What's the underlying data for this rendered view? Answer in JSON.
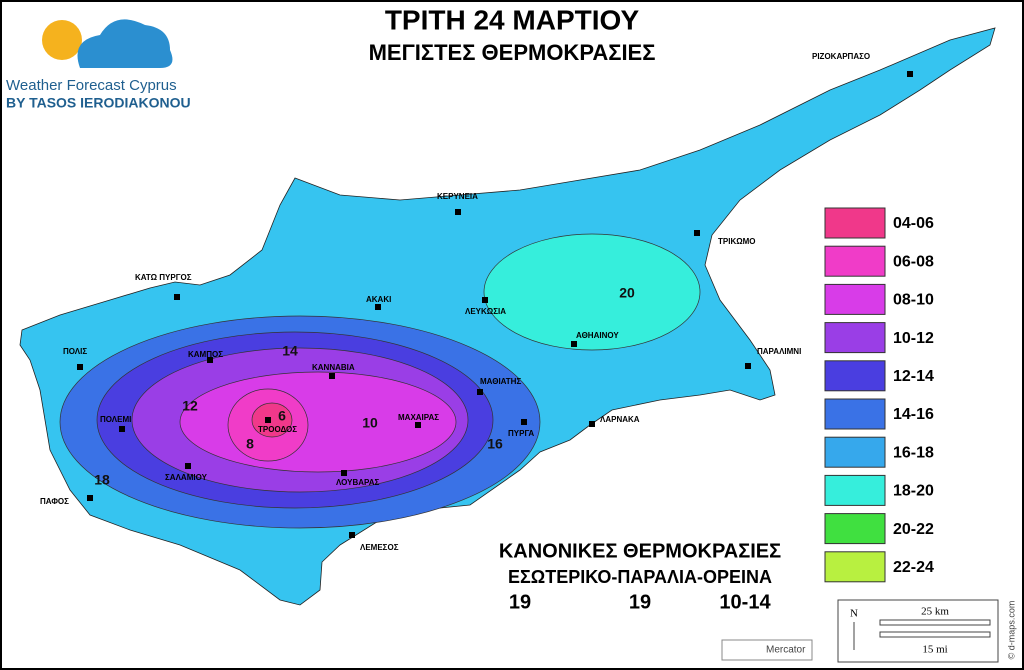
{
  "header": {
    "title": "ΤΡΙΤΗ 24 ΜΑΡΤΙΟΥ",
    "subtitle": "ΜΕΓΙΣΤΕΣ ΘΕΡΜΟΚΡΑΣΙΕΣ"
  },
  "logo": {
    "name": "Weather Forecast Cyprus",
    "byline": "BY TASOS IERODIAKONOU"
  },
  "towns": [
    "ΡΙΖΟΚΑΡΠΑΣΟ",
    "ΚΕΡΥΝΕΙΑ",
    "ΤΡΙΚΩΜΟ",
    "ΚΑΤΩ ΠΥΡΓΟΣ",
    "ΑΚΑΚΙ",
    "ΛΕΥΚΩΣΙΑ",
    "ΑΘΗΑΙΝΟΥ",
    "ΠΑΡΑΛΙΜΝΙ",
    "ΠΟΛΙΣ",
    "ΚΑΜΠΟΣ",
    "ΚΑΝΝΑΒΙΑ",
    "ΜΑΘΙΑΤΗΣ",
    "ΠΟΛΕΜΙ",
    "ΜΑΧΑΙΡΑΣ",
    "ΤΡΟΟΔΟΣ",
    "ΛΑΡΝΑΚΑ",
    "ΠΥΡΓΑ",
    "ΣΑΛΑΜΙΟΥ",
    "ΛΟΥΒΑΡΑΣ",
    "ΠΑΦΟΣ",
    "ΛΕΜΕΣΟΣ"
  ],
  "contour_labels": [
    "14",
    "12",
    "6",
    "8",
    "10",
    "16",
    "18",
    "20"
  ],
  "legend": [
    {
      "label": "04-06",
      "color": "#f0388a"
    },
    {
      "label": "06-08",
      "color": "#f03cc8"
    },
    {
      "label": "08-10",
      "color": "#d83ce8"
    },
    {
      "label": "10-12",
      "color": "#9a3ee6"
    },
    {
      "label": "12-14",
      "color": "#4a3ee0"
    },
    {
      "label": "14-16",
      "color": "#3a72e6"
    },
    {
      "label": "16-18",
      "color": "#36a8ec"
    },
    {
      "label": "18-20",
      "color": "#36eedc"
    },
    {
      "label": "20-22",
      "color": "#40e040"
    },
    {
      "label": "22-24",
      "color": "#b8f040"
    }
  ],
  "normals": {
    "title": "ΚΑΝΟΝΙΚΕΣ ΘΕΡΜΟΚΡΑΣΙΕΣ",
    "subtitle": "ΕΣΩΤΕΡΙΚΟ-ΠΑΡΑΛΙΑ-ΟΡΕΙΝΑ",
    "values": [
      "19",
      "19",
      "10-14"
    ]
  },
  "scale": {
    "north": "N",
    "km": "25 km",
    "mi": "15 mi",
    "projection": "Mercator",
    "credit": "© d-maps.com"
  }
}
